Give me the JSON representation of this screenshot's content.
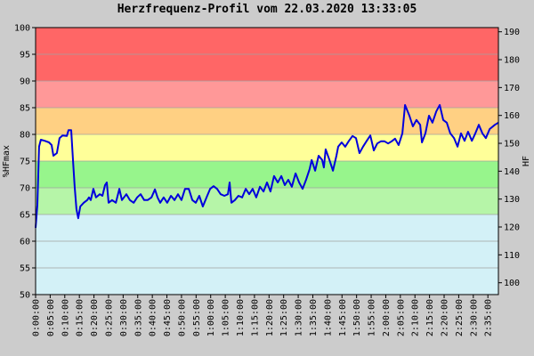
{
  "chart_data": {
    "type": "line",
    "title": "Herzfrequenz-Profil vom 22.03.2020 13:33:05",
    "ylabel": "%HFmax",
    "y2label": "HF",
    "color": "#0000dd",
    "xlim": [
      0,
      158.6
    ],
    "ylim": [
      50,
      100
    ],
    "y2lim": [
      95.75,
      191.5
    ],
    "yticks": [
      50,
      55,
      60,
      65,
      70,
      75,
      80,
      85,
      90,
      95,
      100
    ],
    "y2ticks": [
      100,
      110,
      120,
      130,
      140,
      150,
      160,
      170,
      180,
      190
    ],
    "grid": true,
    "zones": [
      {
        "from": 50,
        "to": 65,
        "color": "#d3f1f7"
      },
      {
        "from": 65,
        "to": 70,
        "color": "#b6f5a8"
      },
      {
        "from": 70,
        "to": 75,
        "color": "#97f58c"
      },
      {
        "from": 75,
        "to": 80,
        "color": "#ffff99"
      },
      {
        "from": 80,
        "to": 85,
        "color": "#ffd083"
      },
      {
        "from": 85,
        "to": 90,
        "color": "#ff9898"
      },
      {
        "from": 90,
        "to": 100,
        "color": "#ff6666"
      }
    ],
    "xticks": [
      {
        "value": 0,
        "label": "0:00:00"
      },
      {
        "value": 5,
        "label": "0:05:00"
      },
      {
        "value": 10,
        "label": "0:10:00"
      },
      {
        "value": 15,
        "label": "0:15:00"
      },
      {
        "value": 20,
        "label": "0:20:00"
      },
      {
        "value": 25,
        "label": "0:25:00"
      },
      {
        "value": 30,
        "label": "0:30:00"
      },
      {
        "value": 35,
        "label": "0:35:00"
      },
      {
        "value": 40,
        "label": "0:40:00"
      },
      {
        "value": 45,
        "label": "0:45:00"
      },
      {
        "value": 50,
        "label": "0:50:00"
      },
      {
        "value": 55,
        "label": "0:55:00"
      },
      {
        "value": 60,
        "label": "1:00:00"
      },
      {
        "value": 65,
        "label": "1:05:00"
      },
      {
        "value": 70,
        "label": "1:10:00"
      },
      {
        "value": 75,
        "label": "1:15:00"
      },
      {
        "value": 80,
        "label": "1:20:00"
      },
      {
        "value": 85,
        "label": "1:25:00"
      },
      {
        "value": 90,
        "label": "1:30:00"
      },
      {
        "value": 95,
        "label": "1:35:00"
      },
      {
        "value": 100,
        "label": "1:40:00"
      },
      {
        "value": 105,
        "label": "1:45:00"
      },
      {
        "value": 110,
        "label": "1:50:00"
      },
      {
        "value": 115,
        "label": "1:55:00"
      },
      {
        "value": 120,
        "label": "2:00:00"
      },
      {
        "value": 125,
        "label": "2:05:00"
      },
      {
        "value": 130,
        "label": "2:10:00"
      },
      {
        "value": 135,
        "label": "2:15:00"
      },
      {
        "value": 140,
        "label": "2:20:00"
      },
      {
        "value": 145,
        "label": "2:25:00"
      },
      {
        "value": 150,
        "label": "2:30:00"
      },
      {
        "value": 155,
        "label": "2:35:00"
      }
    ],
    "x": [
      0,
      0.6,
      1.2,
      1.8,
      3.1,
      4.6,
      5.5,
      6.1,
      7.3,
      8.2,
      9.2,
      10.7,
      11.3,
      12.2,
      12.8,
      13.4,
      14,
      14.6,
      15.3,
      16.5,
      17.7,
      18.3,
      18.9,
      19.8,
      20.7,
      22,
      22.9,
      23.8,
      24.4,
      25,
      26.2,
      27.5,
      28.7,
      29.6,
      31.1,
      32.3,
      33.6,
      34.8,
      36,
      37.2,
      38.4,
      39.7,
      40.9,
      41.8,
      42.7,
      43.9,
      45.1,
      46.4,
      47.6,
      48.8,
      50,
      51.2,
      52.5,
      53.7,
      54.9,
      56.1,
      57.3,
      58.6,
      59.8,
      61,
      62.2,
      63.4,
      64.7,
      65.9,
      66.5,
      67.1,
      68.3,
      69.5,
      70.8,
      72,
      73.2,
      74.4,
      75.6,
      76.9,
      78.1,
      79.3,
      80.5,
      81.7,
      83,
      84.2,
      85.4,
      86.6,
      87.8,
      89.1,
      90.3,
      91.5,
      92.7,
      93.9,
      94.6,
      95.8,
      97,
      98.2,
      98.8,
      99.4,
      100.7,
      101.9,
      103.1,
      103.7,
      104.9,
      106.1,
      107.4,
      108.6,
      109.8,
      111,
      112.2,
      113.5,
      114.7,
      115.9,
      117.1,
      118.3,
      119.6,
      120.8,
      122,
      123.2,
      124.4,
      125.7,
      126.6,
      128.1,
      129.3,
      130.5,
      131.8,
      132.4,
      133.6,
      134.8,
      136,
      137.3,
      138.5,
      139.7,
      140.9,
      142.1,
      143.4,
      144.6,
      145.8,
      147,
      148.2,
      149.5,
      150.7,
      151.9,
      153.1,
      154.3,
      155.6,
      157.4,
      158.6
    ],
    "values": [
      62.5,
      66.8,
      77.7,
      79,
      78.8,
      78.5,
      78,
      76,
      76.5,
      79.3,
      79.8,
      79.7,
      80.8,
      80.8,
      75.2,
      70.2,
      66,
      64.3,
      66.5,
      67.2,
      67.7,
      68.2,
      67.7,
      69.8,
      68.2,
      68.8,
      68.5,
      70.5,
      71,
      67.2,
      67.7,
      67.2,
      69.8,
      67.7,
      68.8,
      67.7,
      67.2,
      68.2,
      68.8,
      67.7,
      67.7,
      68.2,
      69.7,
      68.2,
      67.2,
      68.2,
      67.2,
      68.5,
      67.7,
      68.8,
      67.7,
      69.8,
      69.8,
      67.7,
      67.2,
      68.5,
      66.5,
      68.2,
      69.8,
      70.3,
      69.8,
      68.8,
      68.5,
      68.8,
      71,
      67.2,
      67.7,
      68.5,
      68.2,
      69.8,
      68.8,
      69.8,
      68.2,
      70.2,
      69.3,
      71,
      69.3,
      72.2,
      71,
      72.2,
      70.5,
      71.5,
      70.2,
      72.7,
      71,
      69.8,
      71.5,
      73.5,
      75.2,
      73.2,
      76,
      75.2,
      73.8,
      77.2,
      75.2,
      73.2,
      76,
      77.7,
      78.5,
      77.7,
      78.8,
      79.7,
      79.3,
      76.5,
      77.7,
      78.8,
      79.8,
      77,
      78.3,
      78.7,
      78.7,
      78.3,
      78.7,
      79.2,
      78,
      80.2,
      85.5,
      83.5,
      81.5,
      82.7,
      81.8,
      78.5,
      80.2,
      83.5,
      82.2,
      84.3,
      85.5,
      82.7,
      82.2,
      80.2,
      79.3,
      77.7,
      80.2,
      78.8,
      80.5,
      78.8,
      80.2,
      81.8,
      80.2,
      79.3,
      81,
      81.8,
      82.2
    ]
  }
}
